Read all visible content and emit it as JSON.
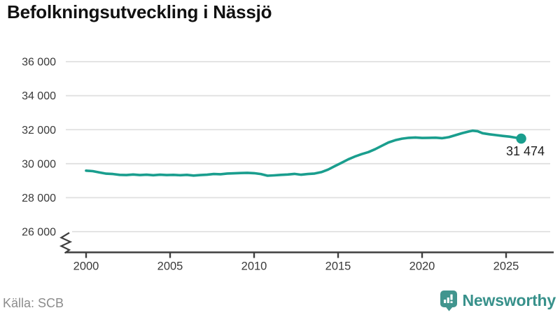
{
  "title": "Befolkningsutveckling i Nässjö",
  "source": "Källa: SCB",
  "branding": {
    "name": "Newsworthy"
  },
  "colors": {
    "line": "#1a9e8e",
    "grid": "#e0e0e0",
    "axis": "#3f3f3f",
    "tick_label": "#3a3a3a",
    "end_label": "#1d1d1d",
    "muted": "#8c8c8c",
    "brand": "#41958e"
  },
  "chart_data": {
    "type": "line",
    "title": "Befolkningsutveckling i Nässjö",
    "xlabel": "",
    "ylabel": "",
    "xlim": [
      1999.5,
      2027.5
    ],
    "ylim": [
      26000,
      36000
    ],
    "axis_break": true,
    "grid": "horizontal",
    "legend": "none",
    "end_label": "31 474",
    "latest_value": 31474,
    "x_ticks": [
      {
        "value": 2000,
        "label": "2000"
      },
      {
        "value": 2005,
        "label": "2005"
      },
      {
        "value": 2010,
        "label": "2010"
      },
      {
        "value": 2015,
        "label": "2015"
      },
      {
        "value": 2020,
        "label": "2020"
      },
      {
        "value": 2025,
        "label": "2025"
      }
    ],
    "y_ticks": [
      {
        "value": 36000,
        "label": "36 000"
      },
      {
        "value": 34000,
        "label": "34 000"
      },
      {
        "value": 32000,
        "label": "32 000"
      },
      {
        "value": 30000,
        "label": "30 000"
      },
      {
        "value": 28000,
        "label": "28 000"
      },
      {
        "value": 26000,
        "label": "26 000"
      }
    ],
    "series": [
      {
        "name": "Befolkning i Nässjö",
        "points": [
          [
            2000.0,
            29590
          ],
          [
            2000.4,
            29560
          ],
          [
            2000.8,
            29480
          ],
          [
            2001.2,
            29410
          ],
          [
            2001.6,
            29390
          ],
          [
            2002.0,
            29340
          ],
          [
            2002.4,
            29330
          ],
          [
            2002.8,
            29360
          ],
          [
            2003.2,
            29330
          ],
          [
            2003.6,
            29350
          ],
          [
            2004.0,
            29320
          ],
          [
            2004.4,
            29350
          ],
          [
            2004.8,
            29330
          ],
          [
            2005.2,
            29340
          ],
          [
            2005.6,
            29320
          ],
          [
            2006.0,
            29340
          ],
          [
            2006.4,
            29300
          ],
          [
            2006.8,
            29330
          ],
          [
            2007.2,
            29350
          ],
          [
            2007.6,
            29390
          ],
          [
            2008.0,
            29380
          ],
          [
            2008.4,
            29420
          ],
          [
            2008.8,
            29430
          ],
          [
            2009.2,
            29450
          ],
          [
            2009.6,
            29460
          ],
          [
            2010.0,
            29440
          ],
          [
            2010.4,
            29390
          ],
          [
            2010.8,
            29290
          ],
          [
            2011.2,
            29310
          ],
          [
            2011.6,
            29340
          ],
          [
            2012.0,
            29360
          ],
          [
            2012.4,
            29400
          ],
          [
            2012.8,
            29350
          ],
          [
            2013.2,
            29390
          ],
          [
            2013.6,
            29420
          ],
          [
            2014.0,
            29500
          ],
          [
            2014.4,
            29650
          ],
          [
            2014.8,
            29850
          ],
          [
            2015.2,
            30050
          ],
          [
            2015.6,
            30250
          ],
          [
            2016.0,
            30420
          ],
          [
            2016.4,
            30560
          ],
          [
            2016.8,
            30680
          ],
          [
            2017.2,
            30850
          ],
          [
            2017.6,
            31050
          ],
          [
            2018.0,
            31250
          ],
          [
            2018.4,
            31380
          ],
          [
            2018.8,
            31470
          ],
          [
            2019.2,
            31520
          ],
          [
            2019.6,
            31540
          ],
          [
            2020.0,
            31510
          ],
          [
            2020.4,
            31520
          ],
          [
            2020.8,
            31530
          ],
          [
            2021.2,
            31500
          ],
          [
            2021.6,
            31560
          ],
          [
            2022.0,
            31680
          ],
          [
            2022.4,
            31800
          ],
          [
            2022.8,
            31900
          ],
          [
            2023.0,
            31940
          ],
          [
            2023.3,
            31910
          ],
          [
            2023.6,
            31790
          ],
          [
            2024.0,
            31730
          ],
          [
            2024.4,
            31680
          ],
          [
            2024.8,
            31630
          ],
          [
            2025.2,
            31590
          ],
          [
            2025.5,
            31540
          ],
          [
            2025.9,
            31474
          ]
        ]
      }
    ]
  }
}
